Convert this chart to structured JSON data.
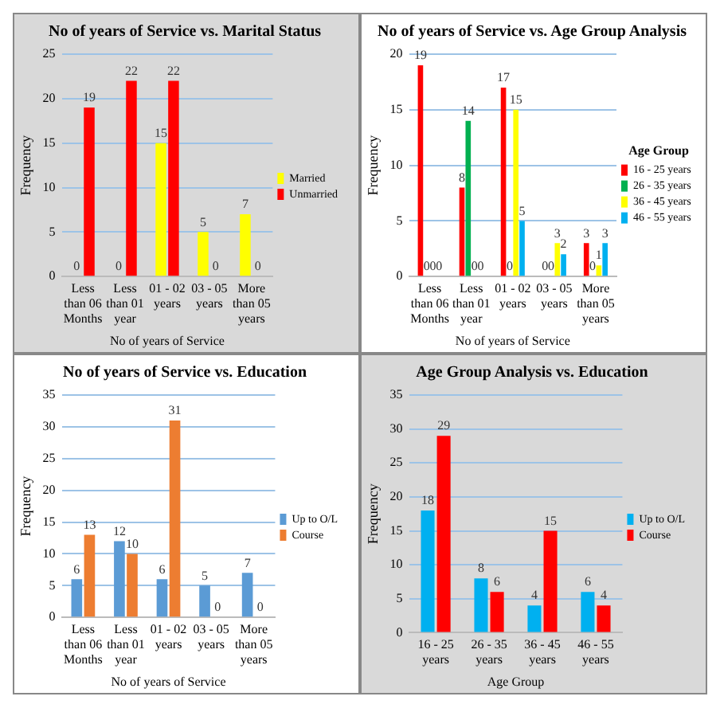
{
  "chart_data": [
    {
      "type": "bar",
      "title": "No of years of Service vs. Marital Status",
      "xlabel": "No of years of Service",
      "ylabel": "Frequency",
      "categories": [
        "Less than 06 Months",
        "Less than 01 year",
        "01 - 02 years",
        "03 - 05 years",
        "More than 05 years"
      ],
      "series": [
        {
          "name": "Married",
          "color": "#ffff00",
          "values": [
            0,
            0,
            15,
            5,
            7
          ]
        },
        {
          "name": "Unmarried",
          "color": "#ff0000",
          "values": [
            19,
            22,
            22,
            0,
            0
          ]
        }
      ],
      "ylim": [
        0,
        25
      ],
      "yticks": [
        0,
        5,
        10,
        15,
        20,
        25
      ],
      "grid": "y",
      "legend": "right",
      "data_labels": true
    },
    {
      "type": "bar",
      "title": "No of years of Service vs. Age Group Analysis",
      "xlabel": "No of years of Service",
      "ylabel": "Frequency",
      "legend_title": "Age Group",
      "categories": [
        "Less than 06 Months",
        "Less than 01 year",
        "01 - 02 years",
        "03 - 05 years",
        "More than 05 years"
      ],
      "series": [
        {
          "name": "16 - 25 years",
          "color": "#ff0000",
          "values": [
            19,
            8,
            17,
            0,
            3
          ]
        },
        {
          "name": "26 - 35 years",
          "color": "#00b050",
          "values": [
            0,
            14,
            0,
            0,
            0
          ]
        },
        {
          "name": "36 - 45 years",
          "color": "#ffff00",
          "values": [
            0,
            0,
            15,
            3,
            1
          ]
        },
        {
          "name": "46 - 55 years",
          "color": "#00b0f0",
          "values": [
            0,
            0,
            5,
            2,
            3
          ]
        }
      ],
      "ylim": [
        0,
        20
      ],
      "yticks": [
        0,
        5,
        10,
        15,
        20
      ],
      "grid": "y",
      "legend": "right",
      "data_labels": true
    },
    {
      "type": "bar",
      "title": "No of years of Service vs. Education",
      "xlabel": "No of years of Service",
      "ylabel": "Frequency",
      "categories": [
        "Less than 06 Months",
        "Less than 01 year",
        "01 - 02 years",
        "03 - 05 years",
        "More than 05 years"
      ],
      "series": [
        {
          "name": "Up to O/L",
          "color": "#5b9bd5",
          "values": [
            6,
            12,
            6,
            5,
            7
          ]
        },
        {
          "name": "Course",
          "color": "#ed7d31",
          "values": [
            13,
            10,
            31,
            0,
            0
          ]
        }
      ],
      "ylim": [
        0,
        35
      ],
      "yticks": [
        0,
        5,
        10,
        15,
        20,
        25,
        30,
        35
      ],
      "grid": "y",
      "legend": "right",
      "data_labels": true
    },
    {
      "type": "bar",
      "title": "Age Group Analysis vs. Education",
      "xlabel": "Age Group",
      "ylabel": "Frequency",
      "categories": [
        "16 - 25 years",
        "26 - 35 years",
        "36 - 45 years",
        "46 - 55 years"
      ],
      "series": [
        {
          "name": "Up to O/L",
          "color": "#00b0f0",
          "values": [
            18,
            8,
            4,
            6
          ]
        },
        {
          "name": "Course",
          "color": "#ff0000",
          "values": [
            29,
            6,
            15,
            4
          ]
        }
      ],
      "ylim": [
        0,
        35
      ],
      "yticks": [
        0,
        5,
        10,
        15,
        20,
        25,
        30,
        35
      ],
      "grid": "y",
      "legend": "right",
      "data_labels": true
    }
  ]
}
